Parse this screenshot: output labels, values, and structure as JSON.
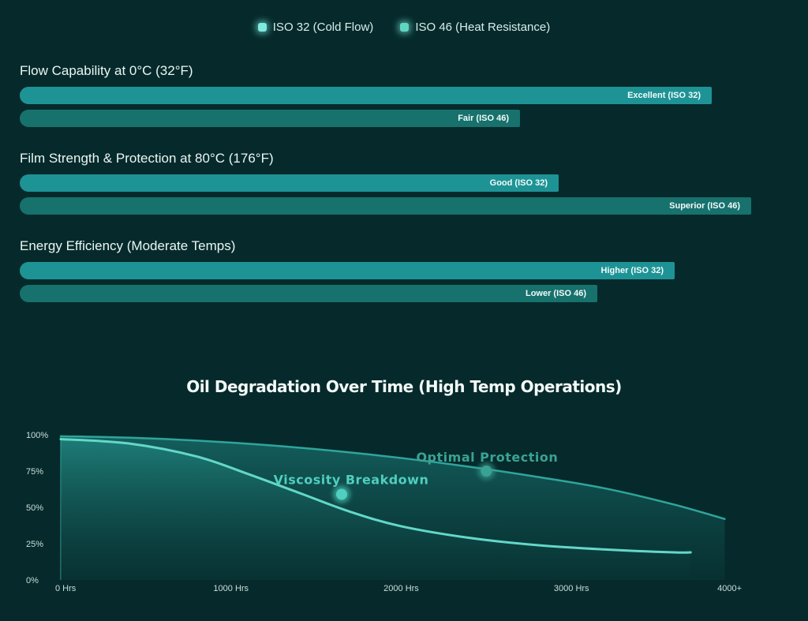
{
  "legend": [
    {
      "label": "ISO 32 (Cold Flow)",
      "color": "#7fe9df"
    },
    {
      "label": "ISO 46 (Heat Resistance)",
      "color": "#5fd6c2"
    }
  ],
  "comparison": [
    {
      "title": "Flow Capability at 0°C (32°F)",
      "bars": [
        {
          "label": "Excellent (ISO 32)",
          "value": 0.895
        },
        {
          "label": "Fair (ISO 46)",
          "value": 0.647
        }
      ]
    },
    {
      "title": "Film Strength & Protection at 80°C (176°F)",
      "bars": [
        {
          "label": "Good (ISO 32)",
          "value": 0.697
        },
        {
          "label": "Superior (ISO 46)",
          "value": 0.946
        }
      ]
    },
    {
      "title": "Energy Efficiency (Moderate Temps)",
      "bars": [
        {
          "label": "Higher (ISO 32)",
          "value": 0.847
        },
        {
          "label": "Lower (ISO 46)",
          "value": 0.747
        }
      ]
    }
  ],
  "chart_data": {
    "type": "area",
    "title": "Oil Degradation Over Time (High Temp Operations)",
    "x_ticks": [
      "0 Hrs",
      "1000 Hrs",
      "2000 Hrs",
      "3000 Hrs",
      "4000+"
    ],
    "y_ticks": [
      "0%",
      "25%",
      "50%",
      "75%",
      "100%"
    ],
    "ylim": [
      0,
      100
    ],
    "xlim": [
      0,
      4000
    ],
    "series": [
      {
        "color": "#2fa59c",
        "x": [
          0,
          400,
          800,
          1200,
          1600,
          2000,
          2400,
          2800,
          3200,
          3600,
          3900
        ],
        "y": [
          99,
          98,
          96,
          93,
          89,
          84,
          78,
          71,
          63,
          52,
          42
        ]
      },
      {
        "color": "#63d8c8",
        "x": [
          0,
          400,
          800,
          1100,
          1400,
          1700,
          2000,
          2400,
          2800,
          3200,
          3600,
          3700
        ],
        "y": [
          97,
          94,
          85,
          73,
          60,
          47,
          37,
          29,
          24,
          21,
          19,
          19
        ]
      }
    ],
    "annotations": [
      {
        "text": "Optimal Protection",
        "x": 2500,
        "y": 75,
        "color": "#3aa294"
      },
      {
        "text": "Viscosity Breakdown",
        "x": 1650,
        "y": 59,
        "color": "#4fcfbf"
      }
    ]
  }
}
